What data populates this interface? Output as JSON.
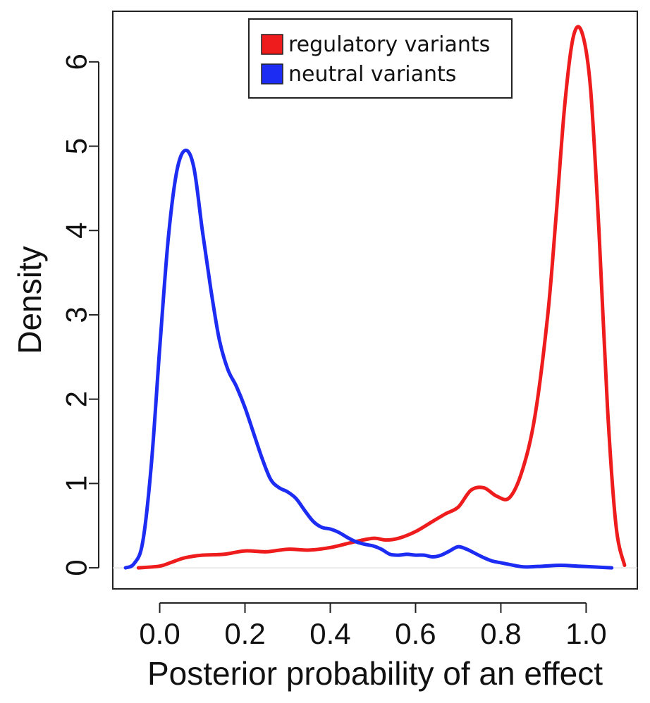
{
  "chart_data": {
    "type": "line",
    "title": "",
    "xlabel": "Posterior probability of an effect",
    "ylabel": "Density",
    "xlim": [
      -0.11,
      1.12
    ],
    "ylim": [
      -0.25,
      6.6
    ],
    "xticks": [
      "0.0",
      "0.2",
      "0.4",
      "0.6",
      "0.8",
      "1.0"
    ],
    "xtick_values": [
      0.0,
      0.2,
      0.4,
      0.6,
      0.8,
      1.0
    ],
    "yticks": [
      "0",
      "1",
      "2",
      "3",
      "4",
      "5",
      "6"
    ],
    "ytick_values": [
      0,
      1,
      2,
      3,
      4,
      5,
      6
    ],
    "grid": false,
    "legend_position": "top-right",
    "series": [
      {
        "name": "regulatory variants",
        "color": "#ee1c1c",
        "x": [
          -0.05,
          0.0,
          0.03,
          0.06,
          0.1,
          0.15,
          0.2,
          0.25,
          0.3,
          0.35,
          0.4,
          0.45,
          0.5,
          0.53,
          0.56,
          0.6,
          0.64,
          0.67,
          0.7,
          0.73,
          0.76,
          0.79,
          0.82,
          0.85,
          0.88,
          0.91,
          0.93,
          0.95,
          0.97,
          0.99,
          1.01,
          1.03,
          1.05,
          1.07,
          1.09
        ],
        "y": [
          0.0,
          0.02,
          0.07,
          0.12,
          0.15,
          0.16,
          0.2,
          0.19,
          0.22,
          0.21,
          0.24,
          0.3,
          0.35,
          0.33,
          0.35,
          0.43,
          0.55,
          0.64,
          0.72,
          0.92,
          0.95,
          0.85,
          0.83,
          1.15,
          1.8,
          3.0,
          4.2,
          5.5,
          6.3,
          6.35,
          5.7,
          4.0,
          1.9,
          0.5,
          0.03
        ]
      },
      {
        "name": "neutral variants",
        "color": "#1c2cf2",
        "x": [
          -0.08,
          -0.06,
          -0.04,
          -0.02,
          0.0,
          0.02,
          0.04,
          0.06,
          0.08,
          0.1,
          0.12,
          0.14,
          0.16,
          0.18,
          0.2,
          0.22,
          0.24,
          0.26,
          0.28,
          0.3,
          0.32,
          0.34,
          0.36,
          0.38,
          0.4,
          0.42,
          0.44,
          0.46,
          0.48,
          0.5,
          0.52,
          0.54,
          0.56,
          0.58,
          0.6,
          0.62,
          0.64,
          0.66,
          0.68,
          0.7,
          0.72,
          0.74,
          0.76,
          0.78,
          0.8,
          0.82,
          0.84,
          0.86,
          0.9,
          0.94,
          0.98,
          1.02,
          1.06
        ],
        "y": [
          0.0,
          0.05,
          0.3,
          1.2,
          2.6,
          3.9,
          4.7,
          4.95,
          4.75,
          4.0,
          3.3,
          2.7,
          2.35,
          2.15,
          1.9,
          1.6,
          1.3,
          1.05,
          0.95,
          0.9,
          0.82,
          0.68,
          0.55,
          0.48,
          0.46,
          0.42,
          0.36,
          0.31,
          0.28,
          0.26,
          0.22,
          0.16,
          0.15,
          0.16,
          0.15,
          0.15,
          0.13,
          0.15,
          0.2,
          0.25,
          0.22,
          0.17,
          0.12,
          0.08,
          0.06,
          0.04,
          0.02,
          0.01,
          0.02,
          0.03,
          0.02,
          0.01,
          0.0
        ]
      }
    ]
  }
}
